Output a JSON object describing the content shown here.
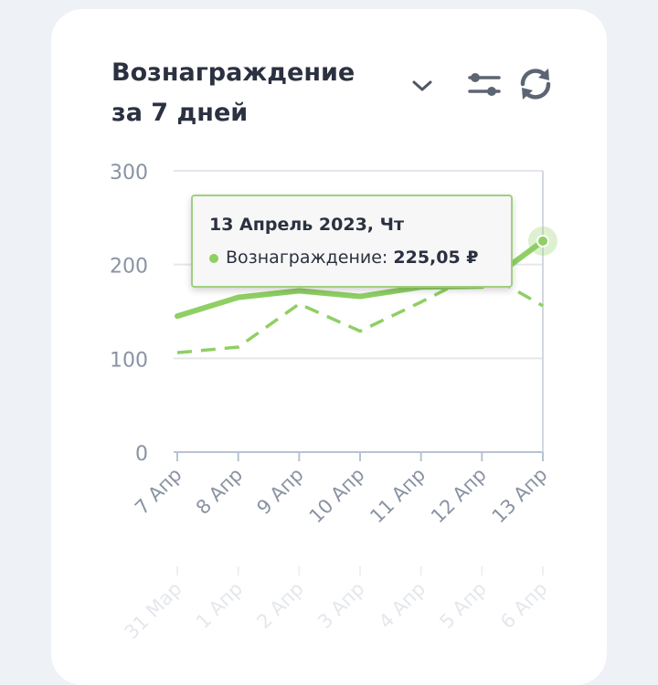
{
  "widget": {
    "title": "Вознаграждение за 7 дней",
    "icons": {
      "dropdown": "chevron-down-icon",
      "filters": "sliders-icon",
      "refresh": "refresh-icon"
    }
  },
  "tooltip": {
    "date": "13 Апрель 2023, Чт",
    "series_label": "Вознаграждение:",
    "value": "225,05 ₽"
  },
  "colors": {
    "current": "#8fcf64",
    "previous": "#8fcf64",
    "grid": "#e3e6eb",
    "axis": "#b7c3d3",
    "tick": "#8a93a3"
  },
  "chart_data": {
    "type": "line",
    "ylim": [
      0,
      300
    ],
    "yticks": [
      0,
      100,
      200,
      300
    ],
    "categories": [
      "7 Апр",
      "8 Апр",
      "9 Апр",
      "10 Апр",
      "11 Апр",
      "12 Апр",
      "13 Апр"
    ],
    "compare_categories": [
      "31 Мар",
      "1 Апр",
      "2 Апр",
      "3 Апр",
      "4 Апр",
      "5 Апр",
      "6 Апр"
    ],
    "series": [
      {
        "name": "Вознаграждение",
        "style": "solid",
        "values": [
          145,
          165,
          172,
          166,
          176,
          177,
          225.05
        ]
      },
      {
        "style": "dashed",
        "values": [
          106,
          112,
          158,
          129,
          160,
          193,
          156
        ]
      }
    ]
  }
}
